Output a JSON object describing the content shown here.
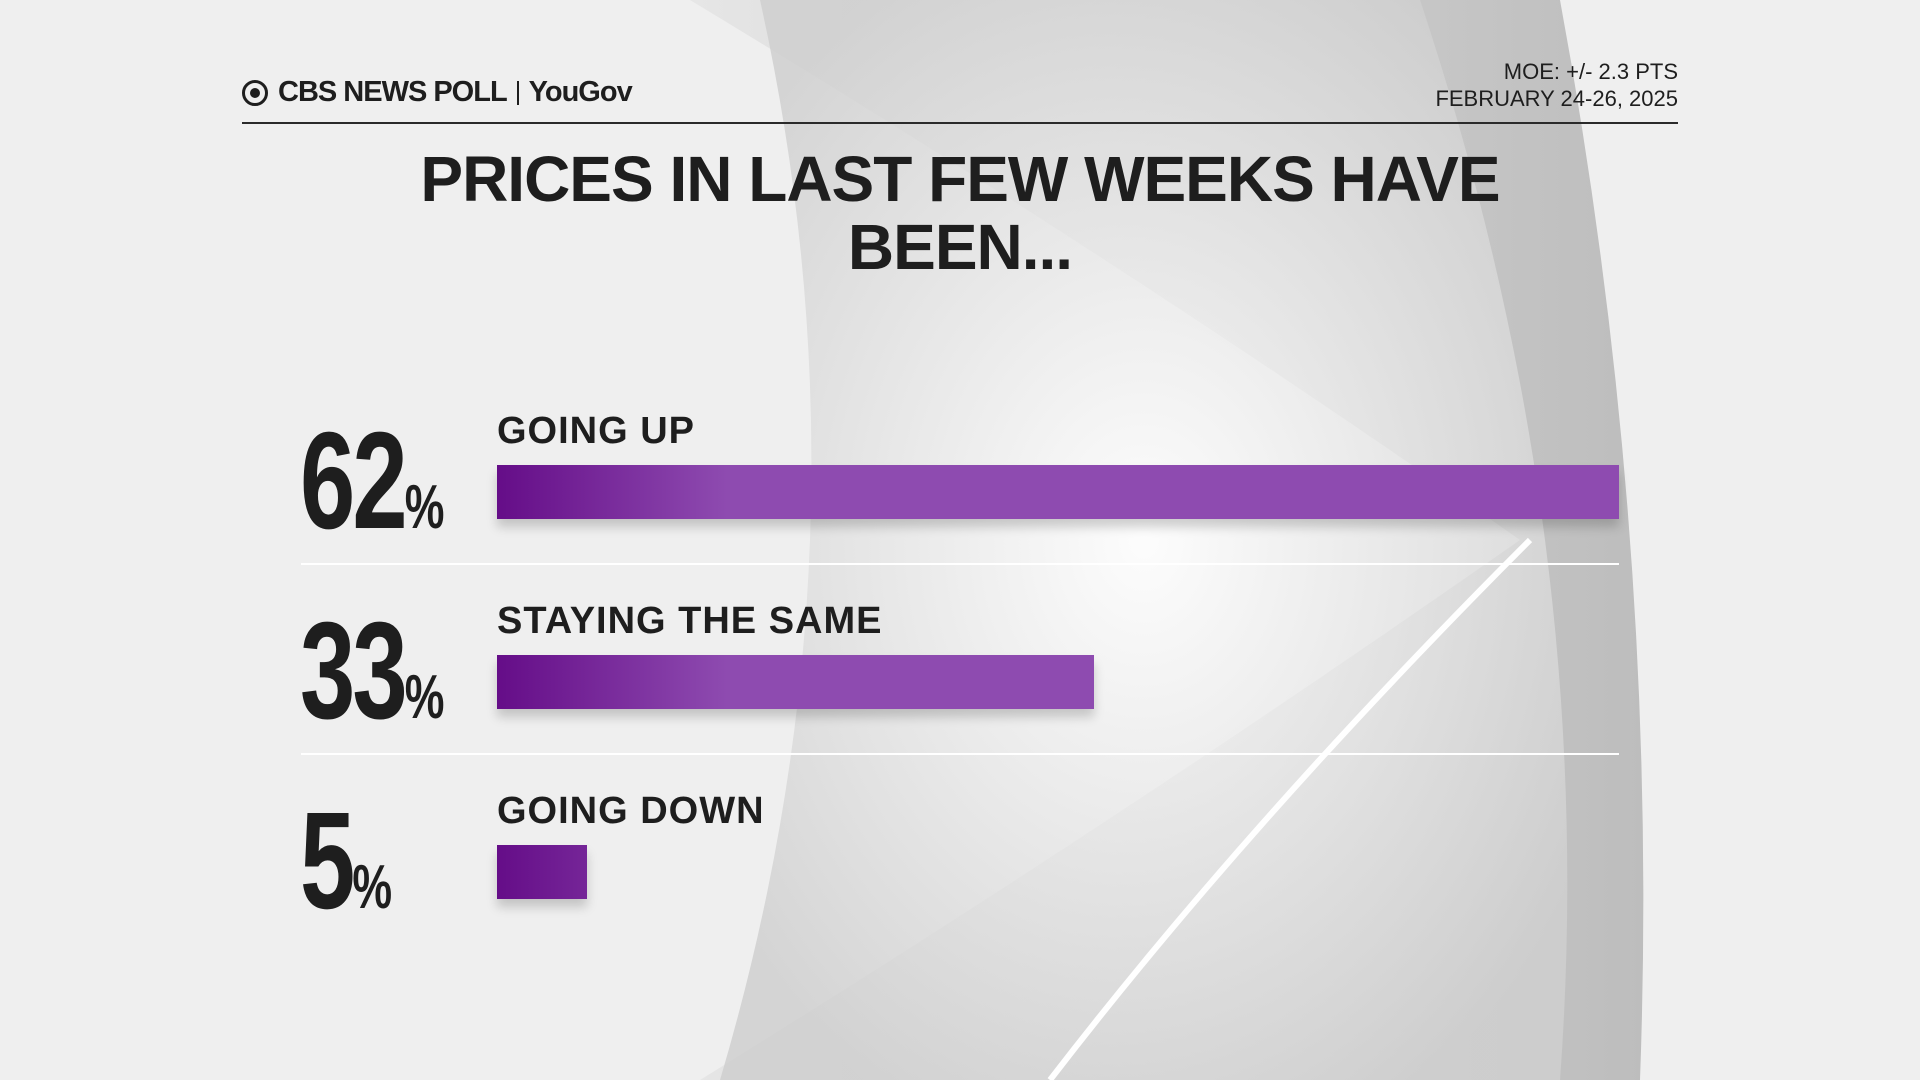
{
  "chart_data": {
    "type": "bar",
    "orientation": "horizontal",
    "source": "CBS NEWS POLL",
    "partner": "YouGov",
    "note": "MOE: +/- 2.3 PTS",
    "date": "FEBRUARY 24-26, 2025",
    "title": "PRICES IN LAST FEW WEEKS HAVE BEEN...",
    "categories": [
      "GOING UP",
      "STAYING THE SAME",
      "GOING DOWN"
    ],
    "values": [
      62,
      33,
      5
    ],
    "value_labels": [
      "62%",
      "33%",
      "5%"
    ],
    "color": "#8e4bb0"
  }
}
